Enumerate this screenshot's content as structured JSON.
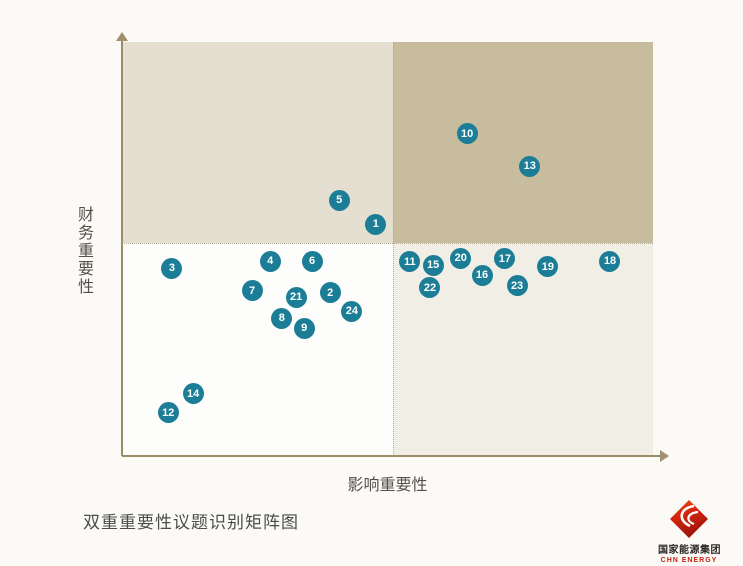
{
  "page": {
    "background": "#fbfaf6"
  },
  "chart_data": {
    "type": "scatter",
    "title": "双重重要性议题识别矩阵图",
    "xlabel": "影响重要性",
    "ylabel": "财务重要性",
    "xlim": [
      0,
      1
    ],
    "ylim": [
      0,
      1
    ],
    "grid": false,
    "legend": "none",
    "quadrant_split": {
      "x": 0.51,
      "y": 0.515
    },
    "quadrant_colors": {
      "top_left": "#e4dfd1",
      "top_right": "#c8bc9e",
      "bottom_left": "#fdfdfb",
      "bottom_right": "#f0eee5"
    },
    "point_color": "#1b7e96",
    "point_label_color": "#ffffff",
    "axis_color": "#9a8e68",
    "points": [
      {
        "label": "1",
        "x": 0.478,
        "y": 0.56
      },
      {
        "label": "2",
        "x": 0.392,
        "y": 0.394
      },
      {
        "label": "3",
        "x": 0.094,
        "y": 0.454
      },
      {
        "label": "4",
        "x": 0.279,
        "y": 0.471
      },
      {
        "label": "5",
        "x": 0.409,
        "y": 0.618
      },
      {
        "label": "6",
        "x": 0.358,
        "y": 0.471
      },
      {
        "label": "7",
        "x": 0.245,
        "y": 0.399
      },
      {
        "label": "8",
        "x": 0.301,
        "y": 0.333
      },
      {
        "label": "9",
        "x": 0.343,
        "y": 0.309
      },
      {
        "label": "10",
        "x": 0.65,
        "y": 0.778
      },
      {
        "label": "11",
        "x": 0.542,
        "y": 0.469
      },
      {
        "label": "12",
        "x": 0.087,
        "y": 0.104
      },
      {
        "label": "13",
        "x": 0.768,
        "y": 0.7
      },
      {
        "label": "14",
        "x": 0.134,
        "y": 0.15
      },
      {
        "label": "15",
        "x": 0.586,
        "y": 0.461
      },
      {
        "label": "16",
        "x": 0.678,
        "y": 0.437
      },
      {
        "label": "17",
        "x": 0.721,
        "y": 0.476
      },
      {
        "label": "18",
        "x": 0.919,
        "y": 0.471
      },
      {
        "label": "19",
        "x": 0.802,
        "y": 0.457
      },
      {
        "label": "20",
        "x": 0.638,
        "y": 0.478
      },
      {
        "label": "21",
        "x": 0.328,
        "y": 0.384
      },
      {
        "label": "22",
        "x": 0.58,
        "y": 0.406
      },
      {
        "label": "23",
        "x": 0.744,
        "y": 0.411
      },
      {
        "label": "24",
        "x": 0.433,
        "y": 0.35
      }
    ]
  },
  "caption": "双重重要性议题识别矩阵图",
  "logo": {
    "name": "国家能源集团",
    "subtitle": "CHN ENERGY",
    "brand_color": "#c6200e"
  }
}
